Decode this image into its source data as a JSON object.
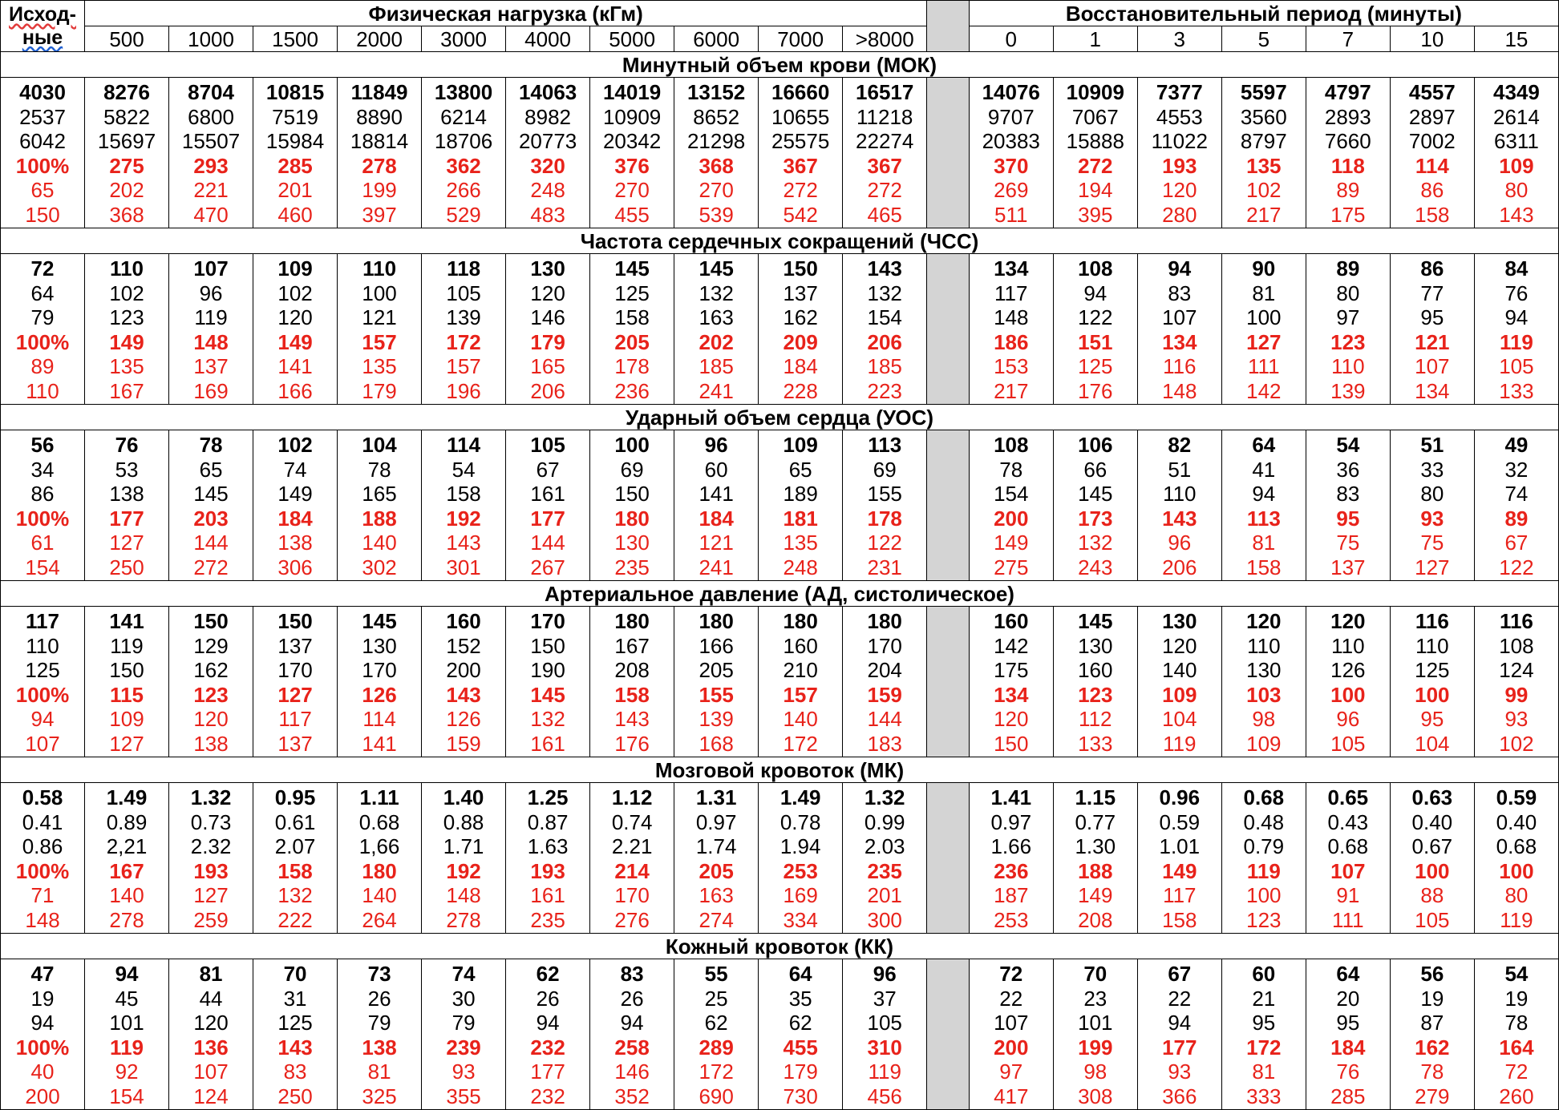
{
  "header": {
    "corner_line1": "Исход-",
    "corner_line2": "ные",
    "load_group": "Физическая нагрузка (кГм)",
    "recovery_group": "Восстановительный период (минуты)",
    "load_columns": [
      "500",
      "1000",
      "1500",
      "2000",
      "3000",
      "4000",
      "5000",
      "6000",
      "7000",
      ">8000"
    ],
    "recovery_columns": [
      "0",
      "1",
      "3",
      "5",
      "7",
      "10",
      "15"
    ]
  },
  "colors": {
    "black_text": "#000000",
    "red_text": "#e8221a",
    "gap_column": "#d4d4d4"
  },
  "sections": [
    {
      "title": "Минутный объем крови (МОК)",
      "baseline": [
        "4030",
        "2537",
        "6042",
        "100%",
        "65",
        "150"
      ],
      "load": [
        [
          "8276",
          "5822",
          "15697",
          "275",
          "202",
          "368"
        ],
        [
          "8704",
          "6800",
          "15507",
          "293",
          "221",
          "470"
        ],
        [
          "10815",
          "7519",
          "15984",
          "285",
          "201",
          "460"
        ],
        [
          "11849",
          "8890",
          "18814",
          "278",
          "199",
          "397"
        ],
        [
          "13800",
          "6214",
          "18706",
          "362",
          "266",
          "529"
        ],
        [
          "14063",
          "8982",
          "20773",
          "320",
          "248",
          "483"
        ],
        [
          "14019",
          "10909",
          "20342",
          "376",
          "270",
          "455"
        ],
        [
          "13152",
          "8652",
          "21298",
          "368",
          "270",
          "539"
        ],
        [
          "16660",
          "10655",
          "25575",
          "367",
          "272",
          "542"
        ],
        [
          "16517",
          "11218",
          "22274",
          "367",
          "272",
          "465"
        ]
      ],
      "recovery": [
        [
          "14076",
          "9707",
          "20383",
          "370",
          "269",
          "511"
        ],
        [
          "10909",
          "7067",
          "15888",
          "272",
          "194",
          "395"
        ],
        [
          "7377",
          "4553",
          "11022",
          "193",
          "120",
          "280"
        ],
        [
          "5597",
          "3560",
          "8797",
          "135",
          "102",
          "217"
        ],
        [
          "4797",
          "2893",
          "7660",
          "118",
          "89",
          "175"
        ],
        [
          "4557",
          "2897",
          "7002",
          "114",
          "86",
          "158"
        ],
        [
          "4349",
          "2614",
          "6311",
          "109",
          "80",
          "143"
        ]
      ]
    },
    {
      "title": "Частота сердечных сокращений (ЧСС)",
      "baseline": [
        "72",
        "64",
        "79",
        "100%",
        "89",
        "110"
      ],
      "load": [
        [
          "110",
          "102",
          "123",
          "149",
          "135",
          "167"
        ],
        [
          "107",
          "96",
          "119",
          "148",
          "137",
          "169"
        ],
        [
          "109",
          "102",
          "120",
          "149",
          "141",
          "166"
        ],
        [
          "110",
          "100",
          "121",
          "157",
          "135",
          "179"
        ],
        [
          "118",
          "105",
          "139",
          "172",
          "157",
          "196"
        ],
        [
          "130",
          "120",
          "146",
          "179",
          "165",
          "206"
        ],
        [
          "145",
          "125",
          "158",
          "205",
          "178",
          "236"
        ],
        [
          "145",
          "132",
          "163",
          "202",
          "185",
          "241"
        ],
        [
          "150",
          "137",
          "162",
          "209",
          "184",
          "228"
        ],
        [
          "143",
          "132",
          "154",
          "206",
          "185",
          "223"
        ]
      ],
      "recovery": [
        [
          "134",
          "117",
          "148",
          "186",
          "153",
          "217"
        ],
        [
          "108",
          "94",
          "122",
          "151",
          "125",
          "176"
        ],
        [
          "94",
          "83",
          "107",
          "134",
          "116",
          "148"
        ],
        [
          "90",
          "81",
          "100",
          "127",
          "111",
          "142"
        ],
        [
          "89",
          "80",
          "97",
          "123",
          "110",
          "139"
        ],
        [
          "86",
          "77",
          "95",
          "121",
          "107",
          "134"
        ],
        [
          "84",
          "76",
          "94",
          "119",
          "105",
          "133"
        ]
      ]
    },
    {
      "title": "Ударный объем сердца (УОС)",
      "baseline": [
        "56",
        "34",
        "86",
        "100%",
        "61",
        "154"
      ],
      "load": [
        [
          "76",
          "53",
          "138",
          "177",
          "127",
          "250"
        ],
        [
          "78",
          "65",
          "145",
          "203",
          "144",
          "272"
        ],
        [
          "102",
          "74",
          "149",
          "184",
          "138",
          "306"
        ],
        [
          "104",
          "78",
          "165",
          "188",
          "140",
          "302"
        ],
        [
          "114",
          "54",
          "158",
          "192",
          "143",
          "301"
        ],
        [
          "105",
          "67",
          "161",
          "177",
          "144",
          "267"
        ],
        [
          "100",
          "69",
          "150",
          "180",
          "130",
          "235"
        ],
        [
          "96",
          "60",
          "141",
          "184",
          "121",
          "241"
        ],
        [
          "109",
          "65",
          "189",
          "181",
          "135",
          "248"
        ],
        [
          "113",
          "69",
          "155",
          "178",
          "122",
          "231"
        ]
      ],
      "recovery": [
        [
          "108",
          "78",
          "154",
          "200",
          "149",
          "275"
        ],
        [
          "106",
          "66",
          "145",
          "173",
          "132",
          "243"
        ],
        [
          "82",
          "51",
          "110",
          "143",
          "96",
          "206"
        ],
        [
          "64",
          "41",
          "94",
          "113",
          "81",
          "158"
        ],
        [
          "54",
          "36",
          "83",
          "95",
          "75",
          "137"
        ],
        [
          "51",
          "33",
          "80",
          "93",
          "75",
          "127"
        ],
        [
          "49",
          "32",
          "74",
          "89",
          "67",
          "122"
        ]
      ]
    },
    {
      "title": "Артериальное давление (АД, систолическое)",
      "baseline": [
        "117",
        "110",
        "125",
        "100%",
        "94",
        "107"
      ],
      "load": [
        [
          "141",
          "119",
          "150",
          "115",
          "109",
          "127"
        ],
        [
          "150",
          "129",
          "162",
          "123",
          "120",
          "138"
        ],
        [
          "150",
          "137",
          "170",
          "127",
          "117",
          "137"
        ],
        [
          "145",
          "130",
          "170",
          "126",
          "114",
          "141"
        ],
        [
          "160",
          "152",
          "200",
          "143",
          "126",
          "159"
        ],
        [
          "170",
          "150",
          "190",
          "145",
          "132",
          "161"
        ],
        [
          "180",
          "167",
          "208",
          "158",
          "143",
          "176"
        ],
        [
          "180",
          "166",
          "205",
          "155",
          "139",
          "168"
        ],
        [
          "180",
          "160",
          "210",
          "157",
          "140",
          "172"
        ],
        [
          "180",
          "170",
          "204",
          "159",
          "144",
          "183"
        ]
      ],
      "recovery": [
        [
          "160",
          "142",
          "175",
          "134",
          "120",
          "150"
        ],
        [
          "145",
          "130",
          "160",
          "123",
          "112",
          "133"
        ],
        [
          "130",
          "120",
          "140",
          "109",
          "104",
          "119"
        ],
        [
          "120",
          "110",
          "130",
          "103",
          "98",
          "109"
        ],
        [
          "120",
          "110",
          "126",
          "100",
          "96",
          "105"
        ],
        [
          "116",
          "110",
          "125",
          "100",
          "95",
          "104"
        ],
        [
          "116",
          "108",
          "124",
          "99",
          "93",
          "102"
        ]
      ]
    },
    {
      "title": "Мозговой кровоток (МК)",
      "baseline": [
        "0.58",
        "0.41",
        "0.86",
        "100%",
        "71",
        "148"
      ],
      "load": [
        [
          "1.49",
          "0.89",
          "2,21",
          "167",
          "140",
          "278"
        ],
        [
          "1.32",
          "0.73",
          "2.32",
          "193",
          "127",
          "259"
        ],
        [
          "0.95",
          "0.61",
          "2.07",
          "158",
          "132",
          "222"
        ],
        [
          "1.11",
          "0.68",
          "1,66",
          "180",
          "140",
          "264"
        ],
        [
          "1.40",
          "0.88",
          "1.71",
          "192",
          "148",
          "278"
        ],
        [
          "1.25",
          "0.87",
          "1.63",
          "193",
          "161",
          "235"
        ],
        [
          "1.12",
          "0.74",
          "2.21",
          "214",
          "170",
          "276"
        ],
        [
          "1.31",
          "0.97",
          "1.74",
          "205",
          "163",
          "274"
        ],
        [
          "1.49",
          "0.78",
          "1.94",
          "253",
          "169",
          "334"
        ],
        [
          "1.32",
          "0.99",
          "2.03",
          "235",
          "201",
          "300"
        ]
      ],
      "recovery": [
        [
          "1.41",
          "0.97",
          "1.66",
          "236",
          "187",
          "253"
        ],
        [
          "1.15",
          "0.77",
          "1.30",
          "188",
          "149",
          "208"
        ],
        [
          "0.96",
          "0.59",
          "1.01",
          "149",
          "117",
          "158"
        ],
        [
          "0.68",
          "0.48",
          "0.79",
          "119",
          "100",
          "123"
        ],
        [
          "0.65",
          "0.43",
          "0.68",
          "107",
          "91",
          "111"
        ],
        [
          "0.63",
          "0.40",
          "0.67",
          "100",
          "88",
          "105"
        ],
        [
          "0.59",
          "0.40",
          "0.68",
          "100",
          "80",
          "119"
        ]
      ]
    },
    {
      "title": "Кожный кровоток (КК)",
      "baseline": [
        "47",
        "19",
        "94",
        "100%",
        "40",
        "200"
      ],
      "load": [
        [
          "94",
          "45",
          "101",
          "119",
          "92",
          "154"
        ],
        [
          "81",
          "44",
          "120",
          "136",
          "107",
          "124"
        ],
        [
          "70",
          "31",
          "125",
          "143",
          "83",
          "250"
        ],
        [
          "73",
          "26",
          "79",
          "138",
          "81",
          "325"
        ],
        [
          "74",
          "30",
          "79",
          "239",
          "93",
          "355"
        ],
        [
          "62",
          "26",
          "94",
          "232",
          "177",
          "232"
        ],
        [
          "83",
          "26",
          "94",
          "258",
          "146",
          "352"
        ],
        [
          "55",
          "25",
          "62",
          "289",
          "172",
          "690"
        ],
        [
          "64",
          "35",
          "62",
          "455",
          "179",
          "730"
        ],
        [
          "96",
          "37",
          "105",
          "310",
          "119",
          "456"
        ]
      ],
      "recovery": [
        [
          "72",
          "22",
          "107",
          "200",
          "97",
          "417"
        ],
        [
          "70",
          "23",
          "101",
          "199",
          "98",
          "308"
        ],
        [
          "67",
          "22",
          "94",
          "177",
          "93",
          "366"
        ],
        [
          "60",
          "21",
          "95",
          "172",
          "81",
          "333"
        ],
        [
          "64",
          "20",
          "95",
          "184",
          "76",
          "285"
        ],
        [
          "56",
          "19",
          "87",
          "162",
          "78",
          "279"
        ],
        [
          "54",
          "19",
          "78",
          "164",
          "72",
          "260"
        ]
      ]
    }
  ]
}
